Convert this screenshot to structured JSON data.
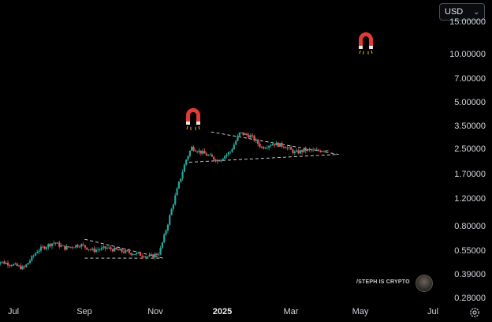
{
  "currency_selector": {
    "value": "USD"
  },
  "y_axis": {
    "ticks": [
      "15.00000",
      "10.00000",
      "7.00000",
      "5.00000",
      "3.50000",
      "2.50000",
      "1.70000",
      "1.20000",
      "0.80000",
      "0.55000",
      "0.39000",
      "0.28000"
    ]
  },
  "x_axis": {
    "ticks": [
      "Jul",
      "Sep",
      "Nov",
      "2025",
      "Mar",
      "May",
      "Jul"
    ],
    "bold_tick": "2025"
  },
  "watermark": {
    "text": "/STEPH IS CRYPTO"
  },
  "icons": [
    "magnet-icon",
    "magnet-icon",
    "settings-gear-icon",
    "avatar"
  ],
  "colors": {
    "up": "#26a69a",
    "down": "#ef5350",
    "background": "#000000",
    "trendline": "#e0e0e0",
    "magnet_red": "#e53935"
  },
  "chart_data": {
    "type": "candlestick",
    "scale": "log",
    "ylim": [
      0.26,
      17
    ],
    "trend_pattern_left": {
      "upper_from": [
        "2024-09-01",
        0.66
      ],
      "upper_to": [
        "2024-11-08",
        0.5
      ],
      "lower_from": [
        "2024-09-01",
        0.5
      ],
      "lower_to": [
        "2024-11-08",
        0.5
      ]
    },
    "trend_pattern_right": {
      "upper_from": [
        "2024-12-20",
        3.2
      ],
      "upper_to": [
        "2025-04-10",
        2.3
      ],
      "lower_from": [
        "2024-12-01",
        2.05
      ],
      "lower_to": [
        "2025-04-10",
        2.3
      ]
    },
    "price_path": [
      [
        "2024-06-15",
        0.48
      ],
      [
        "2024-06-28",
        0.46
      ],
      [
        "2024-07-10",
        0.43
      ],
      [
        "2024-07-22",
        0.56
      ],
      [
        "2024-08-05",
        0.63
      ],
      [
        "2024-08-15",
        0.58
      ],
      [
        "2024-08-28",
        0.61
      ],
      [
        "2024-09-08",
        0.56
      ],
      [
        "2024-09-20",
        0.58
      ],
      [
        "2024-10-05",
        0.55
      ],
      [
        "2024-10-18",
        0.53
      ],
      [
        "2024-10-28",
        0.51
      ],
      [
        "2024-11-05",
        0.54
      ],
      [
        "2024-11-10",
        0.72
      ],
      [
        "2024-11-16",
        1.05
      ],
      [
        "2024-11-22",
        1.5
      ],
      [
        "2024-11-28",
        2.1
      ],
      [
        "2024-12-03",
        2.55
      ],
      [
        "2024-12-10",
        2.4
      ],
      [
        "2024-12-18",
        2.25
      ],
      [
        "2024-12-26",
        2.1
      ],
      [
        "2025-01-06",
        2.4
      ],
      [
        "2025-01-14",
        3.15
      ],
      [
        "2025-01-24",
        3.0
      ],
      [
        "2025-02-02",
        2.55
      ],
      [
        "2025-02-12",
        2.7
      ],
      [
        "2025-02-22",
        2.6
      ],
      [
        "2025-03-03",
        2.35
      ],
      [
        "2025-03-12",
        2.45
      ],
      [
        "2025-03-22",
        2.42
      ],
      [
        "2025-04-01",
        2.48
      ]
    ]
  }
}
